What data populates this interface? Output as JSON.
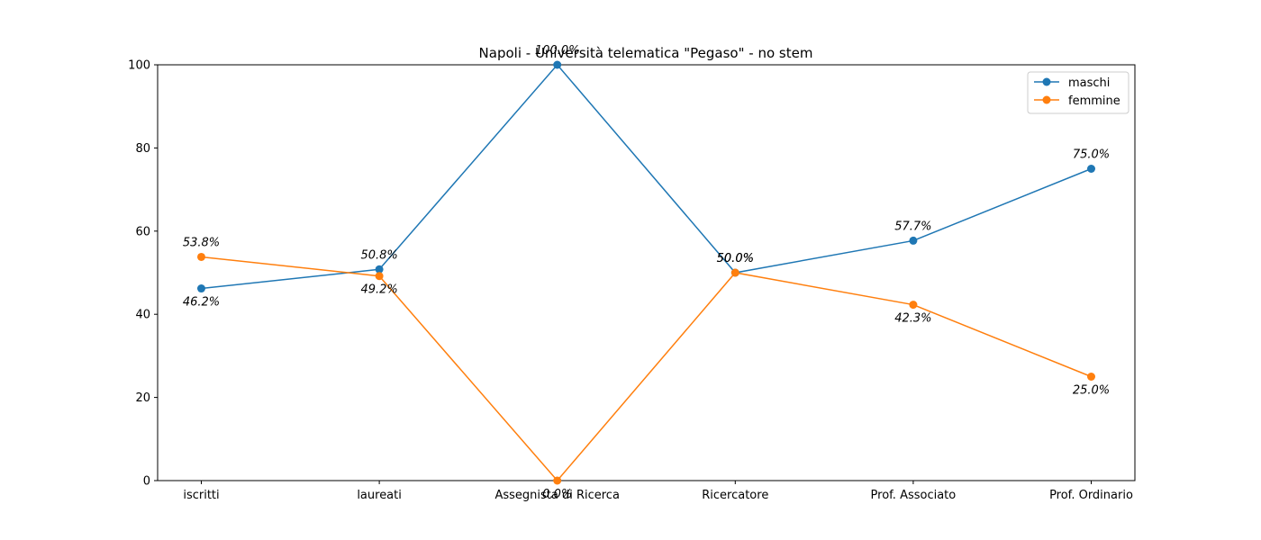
{
  "chart_data": {
    "type": "line",
    "title": "Napoli - Università telematica \"Pegaso\" - no stem",
    "xlabel": "",
    "ylabel": "",
    "categories": [
      "iscritti",
      "laureati",
      "Assegnista di Ricerca",
      "Ricercatore",
      "Prof. Associato",
      "Prof. Ordinario"
    ],
    "ylim": [
      0,
      100
    ],
    "yticks": [
      0,
      20,
      40,
      60,
      80,
      100
    ],
    "grid": false,
    "legend_position": "top-right",
    "series": [
      {
        "name": "maschi",
        "color": "#1f77b4",
        "values": [
          46.2,
          50.8,
          100.0,
          50.0,
          57.7,
          75.0
        ],
        "labels": [
          "46.2%",
          "50.8%",
          "100.0%",
          "50.0%",
          "57.7%",
          "75.0%"
        ]
      },
      {
        "name": "femmine",
        "color": "#ff7f0e",
        "values": [
          53.8,
          49.2,
          0.0,
          50.0,
          42.3,
          25.0
        ],
        "labels": [
          "53.8%",
          "49.2%",
          "0.0%",
          "50.0%",
          "42.3%",
          "25.0%"
        ]
      }
    ]
  }
}
